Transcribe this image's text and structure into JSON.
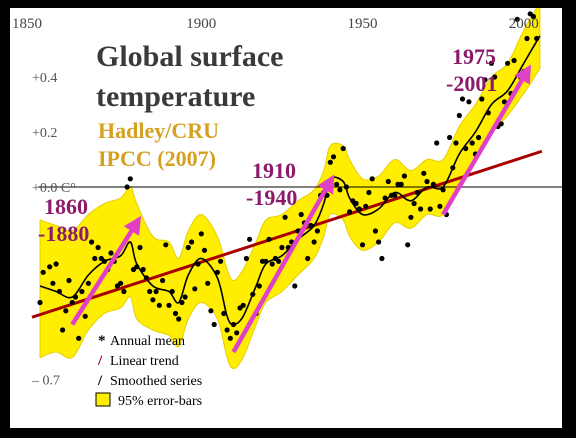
{
  "chart_data": {
    "type": "line",
    "title": "Global surface temperature",
    "source_lines": [
      "Hadley/CRU",
      "IPCC (2007)"
    ],
    "x_ticks": [
      "1850",
      "1900",
      "1950",
      "2000"
    ],
    "y_ticks": [
      "+0.4",
      "+0.2",
      "+0.0 C°",
      "– 0.7"
    ],
    "xlim": [
      1850,
      2005
    ],
    "ylim": [
      -0.78,
      0.55
    ],
    "zero_line": 0.0,
    "annual_mean": {
      "x": [
        1850,
        1851,
        1853,
        1854,
        1855,
        1856,
        1857,
        1858,
        1859,
        1860,
        1861,
        1862,
        1863,
        1864,
        1865,
        1866,
        1867,
        1868,
        1869,
        1870,
        1871,
        1872,
        1873,
        1874,
        1875,
        1876,
        1877,
        1878,
        1879,
        1880,
        1881,
        1882,
        1883,
        1884,
        1885,
        1886,
        1887,
        1888,
        1889,
        1890,
        1891,
        1892,
        1893,
        1894,
        1895,
        1896,
        1897,
        1898,
        1899,
        1900,
        1901,
        1902,
        1903,
        1904,
        1905,
        1906,
        1907,
        1908,
        1909,
        1910,
        1911,
        1912,
        1913,
        1914,
        1915,
        1916,
        1917,
        1918,
        1919,
        1920,
        1921,
        1922,
        1923,
        1924,
        1925,
        1926,
        1927,
        1928,
        1929,
        1930,
        1931,
        1932,
        1933,
        1934,
        1935,
        1936,
        1937,
        1938,
        1939,
        1940,
        1941,
        1942,
        1943,
        1944,
        1945,
        1946,
        1947,
        1948,
        1949,
        1950,
        1951,
        1952,
        1953,
        1954,
        1955,
        1956,
        1957,
        1958,
        1959,
        1960,
        1961,
        1962,
        1963,
        1964,
        1965,
        1966,
        1967,
        1968,
        1969,
        1970,
        1971,
        1972,
        1973,
        1974,
        1975,
        1976,
        1977,
        1978,
        1979,
        1980,
        1981,
        1982,
        1983,
        1984,
        1985,
        1986,
        1987,
        1988,
        1989,
        1990,
        1991,
        1992,
        1993,
        1994,
        1995,
        1996,
        1997,
        1998,
        1999,
        2000,
        2001,
        2002,
        2003,
        2004,
        2005
      ],
      "y": [
        -0.42,
        -0.31,
        -0.29,
        -0.35,
        -0.28,
        -0.38,
        -0.52,
        -0.45,
        -0.34,
        -0.42,
        -0.4,
        -0.55,
        -0.38,
        -0.47,
        -0.35,
        -0.2,
        -0.26,
        -0.22,
        -0.26,
        -0.27,
        -0.3,
        -0.24,
        -0.27,
        -0.36,
        -0.35,
        -0.38,
        0.0,
        0.03,
        -0.3,
        -0.29,
        -0.22,
        -0.3,
        -0.33,
        -0.38,
        -0.41,
        -0.38,
        -0.43,
        -0.34,
        -0.21,
        -0.43,
        -0.38,
        -0.46,
        -0.48,
        -0.42,
        -0.4,
        -0.22,
        -0.2,
        -0.37,
        -0.28,
        -0.17,
        -0.23,
        -0.35,
        -0.45,
        -0.5,
        -0.31,
        -0.27,
        -0.46,
        -0.52,
        -0.55,
        -0.5,
        -0.53,
        -0.44,
        -0.43,
        -0.26,
        -0.19,
        -0.39,
        -0.46,
        -0.36,
        -0.27,
        -0.27,
        -0.19,
        -0.28,
        -0.26,
        -0.27,
        -0.22,
        -0.11,
        -0.22,
        -0.2,
        -0.36,
        -0.16,
        -0.1,
        -0.13,
        -0.26,
        -0.14,
        -0.2,
        -0.16,
        -0.03,
        -0.02,
        -0.03,
        0.09,
        0.11,
        0.01,
        -0.01,
        0.14,
        0.0,
        -0.09,
        -0.05,
        -0.06,
        -0.08,
        -0.21,
        -0.07,
        -0.02,
        0.03,
        -0.16,
        -0.2,
        -0.26,
        -0.04,
        0.02,
        -0.03,
        -0.03,
        0.01,
        0.01,
        0.04,
        -0.21,
        -0.11,
        -0.06,
        -0.02,
        -0.08,
        0.05,
        0.02,
        -0.08,
        0.01,
        0.16,
        -0.07,
        -0.01,
        -0.1,
        0.18,
        0.07,
        0.16,
        0.26,
        0.32,
        0.14,
        0.31,
        0.16,
        0.12,
        0.18,
        0.32,
        0.39,
        0.27,
        0.45,
        0.4,
        0.22,
        0.23,
        0.31,
        0.45,
        0.34,
        0.46,
        0.61,
        0.4,
        0.42,
        0.54,
        0.63,
        0.62,
        0.54,
        0.68
      ]
    },
    "smoothed_series": {
      "x": [
        1850,
        1855,
        1860,
        1865,
        1870,
        1875,
        1878,
        1880,
        1885,
        1890,
        1893,
        1896,
        1900,
        1905,
        1908,
        1910,
        1913,
        1917,
        1920,
        1925,
        1930,
        1935,
        1938,
        1940,
        1944,
        1946,
        1950,
        1955,
        1960,
        1965,
        1970,
        1975,
        1980,
        1985,
        1990,
        1995,
        2000,
        2005
      ],
      "y": [
        -0.36,
        -0.38,
        -0.4,
        -0.32,
        -0.27,
        -0.25,
        -0.2,
        -0.28,
        -0.36,
        -0.38,
        -0.42,
        -0.32,
        -0.26,
        -0.33,
        -0.47,
        -0.5,
        -0.47,
        -0.36,
        -0.28,
        -0.25,
        -0.19,
        -0.14,
        -0.06,
        0.03,
        0.02,
        -0.04,
        -0.1,
        -0.08,
        -0.02,
        -0.05,
        0.0,
        0.0,
        0.12,
        0.2,
        0.3,
        0.35,
        0.45,
        0.55
      ]
    },
    "error_band": {
      "x": [
        1850,
        1855,
        1860,
        1865,
        1870,
        1875,
        1878,
        1880,
        1885,
        1890,
        1893,
        1896,
        1900,
        1905,
        1908,
        1910,
        1913,
        1917,
        1920,
        1925,
        1930,
        1935,
        1938,
        1940,
        1944,
        1946,
        1950,
        1955,
        1960,
        1965,
        1970,
        1975,
        1980,
        1985,
        1990,
        1995,
        2000,
        2005
      ],
      "lower": [
        -0.62,
        -0.6,
        -0.62,
        -0.52,
        -0.46,
        -0.44,
        -0.4,
        -0.48,
        -0.52,
        -0.54,
        -0.58,
        -0.48,
        -0.42,
        -0.48,
        -0.62,
        -0.66,
        -0.62,
        -0.5,
        -0.42,
        -0.38,
        -0.32,
        -0.26,
        -0.18,
        -0.1,
        -0.12,
        -0.18,
        -0.23,
        -0.2,
        -0.13,
        -0.15,
        -0.1,
        -0.1,
        0.02,
        0.1,
        0.2,
        0.26,
        0.34,
        0.43
      ],
      "upper": [
        -0.12,
        -0.14,
        -0.16,
        -0.1,
        -0.06,
        -0.04,
        0.0,
        -0.06,
        -0.18,
        -0.2,
        -0.26,
        -0.16,
        -0.1,
        -0.18,
        -0.3,
        -0.34,
        -0.3,
        -0.2,
        -0.12,
        -0.1,
        -0.05,
        -0.01,
        0.06,
        0.15,
        0.15,
        0.1,
        0.03,
        0.04,
        0.1,
        0.06,
        0.1,
        0.1,
        0.22,
        0.3,
        0.4,
        0.45,
        0.57,
        0.67
      ]
    },
    "linear_trend": {
      "x": [
        1850,
        2005
      ],
      "y": [
        -0.47,
        0.13
      ]
    },
    "trend_arrows": [
      {
        "label_lines": [
          "1860",
          "-1880"
        ],
        "x": [
          1860,
          1880
        ],
        "y": [
          -0.5,
          -0.13
        ]
      },
      {
        "label_lines": [
          "1910",
          "-1940"
        ],
        "x": [
          1910,
          1940
        ],
        "y": [
          -0.6,
          0.02
        ]
      },
      {
        "label_lines": [
          "1975",
          "-2001"
        ],
        "x": [
          1975,
          2001
        ],
        "y": [
          -0.1,
          0.42
        ]
      }
    ],
    "legend": [
      {
        "symbol": "*",
        "label": "Annual mean"
      },
      {
        "symbol": "/",
        "label": "Linear trend"
      },
      {
        "symbol": "/",
        "label": "Smoothed series"
      },
      {
        "symbol": "box",
        "label": "95% error-bars"
      }
    ],
    "colors": {
      "band": "#ffee00",
      "trend": "#a80000",
      "arrow": "#e040c8",
      "arrow_label": "#8b1a6b",
      "source": "#d6a020",
      "title": "#3a3a3a",
      "dots": "#000000",
      "smooth": "#000000"
    }
  }
}
